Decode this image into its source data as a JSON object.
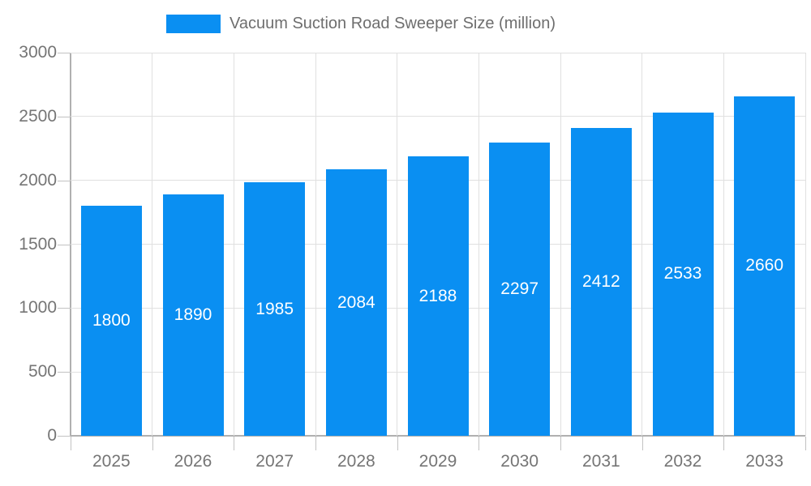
{
  "legend": {
    "label": "Vacuum Suction Road Sweeper Size (million)"
  },
  "chart_data": {
    "type": "bar",
    "title": "Vacuum Suction Road Sweeper Size (million)",
    "categories": [
      "2025",
      "2026",
      "2027",
      "2028",
      "2029",
      "2030",
      "2031",
      "2032",
      "2033"
    ],
    "values": [
      1800,
      1890,
      1985,
      2084,
      2188,
      2297,
      2412,
      2533,
      2660
    ],
    "xlabel": "",
    "ylabel": "",
    "ylim": [
      0,
      3000
    ],
    "yticks": [
      0,
      500,
      1000,
      1500,
      2000,
      2500,
      3000
    ],
    "grid": true,
    "legend_position": "top",
    "colors": {
      "bar": "#0a8ff2",
      "value_label": "#ffffff",
      "tick_label": "#757575",
      "legend_text": "#6e6e6e",
      "grid_line": "#e0e0e0",
      "axis_line": "#b0b0b0",
      "tick_mark": "#c2c2c2",
      "background": "#ffffff"
    }
  }
}
